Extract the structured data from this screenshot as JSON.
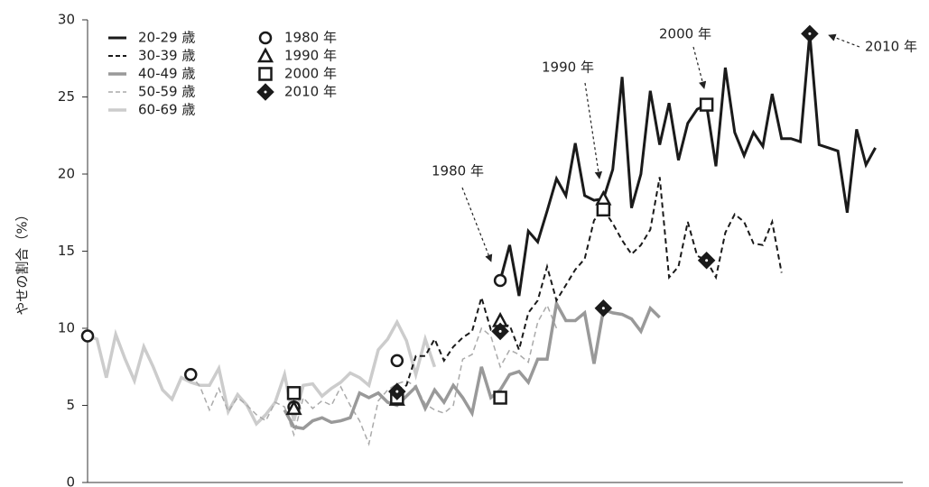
{
  "chart_data": {
    "type": "line",
    "ylabel": "やせの割合（%）",
    "ylim": [
      0,
      30
    ],
    "yticks": [
      0,
      5,
      10,
      15,
      20,
      25,
      30
    ],
    "legend": "upper left",
    "categories": [
      null,
      null,
      null,
      null,
      null,
      null,
      null,
      null,
      null,
      null,
      null,
      null,
      null,
      null,
      null,
      null,
      null,
      null,
      null,
      null,
      null,
      null,
      null,
      null,
      null,
      null,
      null,
      null,
      null,
      null,
      null,
      null,
      null,
      null,
      null,
      null,
      null,
      null,
      null,
      null,
      null,
      null,
      null,
      null,
      null,
      null,
      null,
      null,
      null,
      null,
      null,
      null,
      null,
      null,
      null,
      null,
      null,
      null,
      null,
      null,
      null,
      null,
      null,
      null,
      null,
      null,
      null,
      null,
      null,
      null,
      null,
      null,
      null,
      null,
      null,
      null,
      null,
      null,
      null,
      null,
      null,
      null,
      null,
      null,
      null,
      null
    ],
    "series": [
      {
        "name": "20-29 歳",
        "color": "#1a1a1a",
        "width": 3,
        "dashed": false,
        "values": [
          null,
          null,
          null,
          null,
          null,
          null,
          null,
          null,
          null,
          null,
          null,
          null,
          null,
          null,
          null,
          null,
          null,
          null,
          null,
          null,
          null,
          null,
          null,
          null,
          null,
          null,
          null,
          null,
          null,
          null,
          null,
          null,
          null,
          null,
          null,
          null,
          null,
          null,
          null,
          null,
          null,
          null,
          null,
          null,
          13.1,
          15.4,
          12.1,
          16.3,
          15.6,
          17.6,
          19.7,
          18.6,
          22.0,
          18.6,
          18.3,
          18.4,
          20.3,
          26.3,
          17.8,
          20.0,
          25.4,
          21.9,
          24.6,
          20.9,
          23.3,
          24.2,
          24.5,
          20.5,
          26.9,
          22.7,
          21.2,
          22.7,
          21.8,
          25.2,
          22.3,
          22.3,
          22.1,
          29.1,
          21.9,
          21.7,
          21.5,
          17.5,
          22.9,
          20.6,
          21.7,
          null
        ]
      },
      {
        "name": "30-39 歳",
        "color": "#1a1a1a",
        "width": 2,
        "dashed": true,
        "values": [
          null,
          null,
          null,
          null,
          null,
          null,
          null,
          null,
          null,
          null,
          null,
          null,
          null,
          null,
          null,
          null,
          null,
          null,
          null,
          null,
          null,
          null,
          null,
          null,
          null,
          null,
          null,
          null,
          null,
          null,
          null,
          null,
          null,
          6.0,
          6.3,
          8.2,
          8.2,
          9.3,
          7.9,
          8.8,
          9.4,
          9.8,
          12.0,
          9.9,
          10.1,
          10.2,
          8.6,
          11.0,
          11.8,
          14.0,
          11.8,
          12.8,
          13.8,
          14.5,
          17.0,
          17.7,
          16.8,
          15.7,
          14.8,
          15.4,
          16.4,
          19.8,
          13.3,
          14.0,
          16.9,
          14.7,
          14.4,
          13.3,
          16.2,
          17.4,
          16.9,
          15.5,
          15.4,
          16.9,
          13.6,
          null,
          null,
          null,
          null,
          null,
          null,
          null,
          null,
          null,
          null,
          null
        ]
      },
      {
        "name": "40-49 歳",
        "color": "#999999",
        "width": 3.5,
        "dashed": false,
        "values": [
          null,
          null,
          null,
          null,
          null,
          null,
          null,
          null,
          null,
          null,
          null,
          null,
          null,
          null,
          null,
          null,
          null,
          null,
          null,
          null,
          null,
          4.7,
          3.6,
          3.5,
          4.0,
          4.2,
          3.9,
          4.0,
          4.2,
          5.8,
          5.5,
          5.8,
          5.2,
          5.0,
          5.6,
          6.2,
          4.8,
          6.0,
          5.2,
          6.3,
          5.5,
          4.5,
          7.5,
          5.5,
          6.0,
          7.0,
          7.2,
          6.5,
          8.0,
          8.0,
          11.6,
          10.5,
          10.5,
          11.0,
          7.7,
          11.2,
          11.0,
          10.9,
          10.6,
          9.8,
          11.3,
          10.7,
          null,
          null,
          null,
          null,
          null,
          null,
          null,
          null,
          null,
          null,
          null,
          null,
          null,
          null,
          null,
          null,
          null,
          null,
          null,
          null,
          null,
          null,
          null,
          null
        ]
      },
      {
        "name": "50-59 歳",
        "color": "#aaaaaa",
        "width": 1.5,
        "dashed": true,
        "values": [
          null,
          null,
          null,
          null,
          null,
          null,
          null,
          null,
          null,
          null,
          null,
          7.0,
          6.2,
          4.7,
          6.1,
          4.6,
          5.5,
          5.0,
          4.4,
          4.0,
          5.2,
          4.9,
          3.1,
          5.5,
          4.8,
          5.3,
          5.0,
          6.2,
          5.0,
          4.0,
          2.5,
          5.3,
          6.0,
          6.4,
          6.6,
          6.2,
          5.1,
          4.7,
          4.5,
          5.0,
          8.0,
          8.3,
          10.0,
          9.5,
          7.5,
          8.6,
          8.3,
          7.8,
          10.4,
          11.5,
          10.0,
          null,
          null,
          null,
          null,
          null,
          null,
          null,
          null,
          null,
          null,
          null,
          null,
          null,
          null,
          null,
          null,
          null,
          null,
          null,
          null,
          null,
          null,
          null,
          null,
          null,
          null,
          null,
          null,
          null,
          null,
          null,
          null,
          null,
          null,
          null
        ]
      },
      {
        "name": "60-69 歳",
        "color": "#cccccc",
        "width": 3.5,
        "dashed": false,
        "values": [
          9.5,
          9.3,
          6.8,
          9.6,
          8.0,
          6.6,
          8.8,
          7.5,
          6.0,
          5.4,
          6.8,
          6.5,
          6.3,
          6.3,
          7.4,
          4.6,
          5.7,
          5.0,
          3.8,
          4.4,
          5.2,
          7.0,
          4.0,
          6.3,
          6.4,
          5.6,
          6.1,
          6.5,
          7.1,
          6.8,
          6.3,
          8.6,
          9.3,
          10.4,
          9.2,
          7.0,
          9.3,
          7.5,
          null,
          null,
          null,
          null,
          null,
          null,
          null,
          null,
          null,
          null,
          null,
          null,
          null,
          null,
          null,
          null,
          null,
          null,
          null,
          null,
          null,
          null,
          null,
          null,
          null,
          null,
          null,
          null,
          null,
          null,
          null,
          null,
          null,
          null,
          null,
          null,
          null,
          null,
          null,
          null,
          null,
          null,
          null,
          null,
          null,
          null,
          null,
          null
        ]
      }
    ],
    "markers": [
      {
        "name": "1980 年",
        "shape": "circle",
        "x": [
          0,
          11,
          22,
          33,
          44
        ],
        "values": [
          9.5,
          7.0,
          4.9,
          7.9,
          13.1
        ]
      },
      {
        "name": "1990 年",
        "shape": "triangle",
        "x": [
          22,
          33,
          44,
          55
        ],
        "values": [
          4.8,
          5.4,
          10.5,
          18.4
        ]
      },
      {
        "name": "2000 年",
        "shape": "square",
        "x": [
          22,
          33,
          44,
          55,
          66
        ],
        "values": [
          5.8,
          5.5,
          5.5,
          17.7,
          24.5
        ]
      },
      {
        "name": "2010 年",
        "shape": "diamond",
        "x": [
          33,
          44,
          55,
          66,
          77
        ],
        "values": [
          5.9,
          9.8,
          11.3,
          14.4,
          29.1
        ]
      }
    ],
    "annotations": [
      "1980 年",
      "1990 年",
      "2000 年",
      "2010 年"
    ]
  }
}
